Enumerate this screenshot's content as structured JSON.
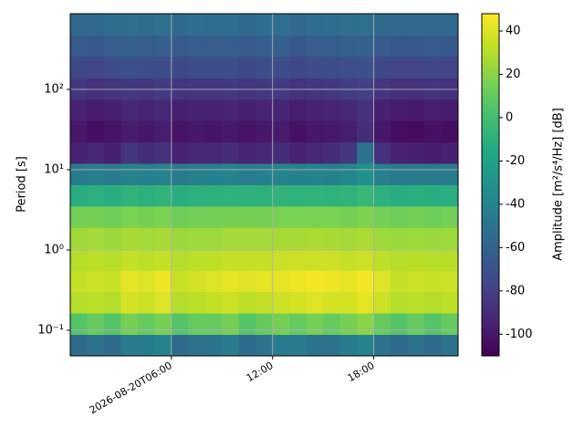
{
  "chart_data": {
    "type": "heatmap",
    "ylabel": "Period [s]",
    "x": [
      "2026-08-20T00:00",
      "2026-08-20T01:00",
      "2026-08-20T02:00",
      "2026-08-20T03:00",
      "2026-08-20T04:00",
      "2026-08-20T05:00",
      "2026-08-20T06:00",
      "2026-08-20T07:00",
      "2026-08-20T08:00",
      "2026-08-20T09:00",
      "2026-08-20T10:00",
      "2026-08-20T11:00",
      "2026-08-20T12:00",
      "2026-08-20T13:00",
      "2026-08-20T14:00",
      "2026-08-20T15:00",
      "2026-08-20T16:00",
      "2026-08-20T17:00",
      "2026-08-20T18:00",
      "2026-08-20T19:00",
      "2026-08-20T20:00",
      "2026-08-20T21:00",
      "2026-08-20T22:00"
    ],
    "xlim": [
      "2026-08-20T00:00",
      "2026-08-20T23:00"
    ],
    "xticks": [
      {
        "value": "2026-08-20T06:00",
        "label": "2026-08-20T06:00"
      },
      {
        "value": "2026-08-20T12:00",
        "label": "12:00"
      },
      {
        "value": "2026-08-20T18:00",
        "label": "18:00"
      }
    ],
    "y_bins": [
      0.048,
      0.0888,
      0.164,
      0.303,
      0.559,
      1.03,
      1.91,
      3.52,
      6.49,
      12.0,
      22.1,
      40.8,
      75.5,
      139,
      257,
      475,
      877
    ],
    "ylim": [
      0.048,
      877
    ],
    "yscale": "log",
    "yticks": [
      {
        "value": 0.1,
        "label": "10⁻¹"
      },
      {
        "value": 1,
        "label": "10⁰"
      },
      {
        "value": 10,
        "label": "10¹"
      },
      {
        "value": 100,
        "label": "10²"
      }
    ],
    "grid": true,
    "colormap": "viridis",
    "z": [
      [
        -55,
        -50,
        -55,
        -45,
        -45,
        -40,
        -55,
        -50,
        -50,
        -45,
        -55,
        -50,
        -45,
        -45,
        -50,
        -50,
        -45,
        -40,
        -50,
        -55,
        -50,
        -55,
        -50
      ],
      [
        5,
        10,
        5,
        15,
        10,
        15,
        5,
        10,
        10,
        15,
        5,
        10,
        15,
        10,
        15,
        10,
        15,
        20,
        10,
        5,
        10,
        5,
        10
      ],
      [
        30,
        32,
        30,
        38,
        36,
        40,
        30,
        32,
        34,
        36,
        32,
        34,
        36,
        38,
        40,
        38,
        38,
        42,
        36,
        30,
        32,
        30,
        32
      ],
      [
        34,
        36,
        35,
        42,
        40,
        44,
        35,
        38,
        40,
        42,
        40,
        42,
        42,
        44,
        46,
        44,
        42,
        46,
        40,
        34,
        36,
        35,
        36
      ],
      [
        30,
        32,
        30,
        34,
        32,
        34,
        30,
        32,
        32,
        34,
        34,
        34,
        35,
        36,
        36,
        36,
        34,
        36,
        32,
        30,
        31,
        30,
        31
      ],
      [
        25,
        26,
        24,
        27,
        26,
        27,
        24,
        25,
        25,
        26,
        26,
        26,
        27,
        27,
        28,
        27,
        26,
        28,
        25,
        24,
        25,
        24,
        25
      ],
      [
        14,
        15,
        13,
        16,
        15,
        16,
        13,
        14,
        14,
        15,
        15,
        15,
        16,
        16,
        16,
        16,
        15,
        17,
        14,
        13,
        14,
        13,
        14
      ],
      [
        -12,
        -10,
        -12,
        -8,
        -10,
        -8,
        -12,
        -10,
        -10,
        -9,
        -10,
        -10,
        -8,
        -9,
        -8,
        -9,
        -8,
        -5,
        -10,
        -12,
        -11,
        -12,
        -11
      ],
      [
        -45,
        -42,
        -44,
        -40,
        -42,
        -40,
        -45,
        -42,
        -42,
        -40,
        -43,
        -42,
        -40,
        -41,
        -40,
        -41,
        -38,
        -30,
        -42,
        -45,
        -44,
        -45,
        -44
      ],
      [
        -95,
        -92,
        -96,
        -85,
        -90,
        -88,
        -95,
        -92,
        -92,
        -90,
        -94,
        -92,
        -90,
        -95,
        -92,
        -90,
        -85,
        -50,
        -88,
        -95,
        -96,
        -98,
        -96
      ],
      [
        -100,
        -104,
        -102,
        -98,
        -100,
        -97,
        -102,
        -100,
        -101,
        -99,
        -102,
        -100,
        -98,
        -103,
        -100,
        -99,
        -97,
        -90,
        -100,
        -104,
        -105,
        -103,
        -104
      ],
      [
        -95,
        -98,
        -96,
        -92,
        -94,
        -92,
        -96,
        -95,
        -95,
        -94,
        -96,
        -94,
        -93,
        -97,
        -95,
        -94,
        -92,
        -88,
        -96,
        -98,
        -99,
        -97,
        -98
      ],
      [
        -85,
        -88,
        -86,
        -84,
        -85,
        -83,
        -86,
        -85,
        -85,
        -84,
        -86,
        -84,
        -83,
        -87,
        -85,
        -84,
        -82,
        -80,
        -86,
        -88,
        -88,
        -87,
        -88
      ],
      [
        -75,
        -77,
        -74,
        -72,
        -74,
        -73,
        -75,
        -74,
        -74,
        -73,
        -75,
        -74,
        -73,
        -76,
        -74,
        -73,
        -72,
        -71,
        -75,
        -77,
        -77,
        -76,
        -77
      ],
      [
        -65,
        -66,
        -63,
        -62,
        -64,
        -62,
        -65,
        -63,
        -64,
        -63,
        -65,
        -63,
        -62,
        -66,
        -64,
        -63,
        -62,
        -61,
        -65,
        -66,
        -66,
        -65,
        -66
      ],
      [
        -55,
        -56,
        -53,
        -52,
        -54,
        -52,
        -55,
        -53,
        -54,
        -53,
        -55,
        -53,
        -52,
        -56,
        -54,
        -53,
        -52,
        -51,
        -55,
        -56,
        -56,
        -55,
        -56
      ]
    ],
    "colorbar": {
      "label": "Amplitude [m²/s⁴/Hz] [dB]",
      "lim": [
        -110,
        48
      ],
      "ticks": [
        -100,
        -80,
        -60,
        -40,
        -20,
        0,
        20,
        40
      ]
    }
  }
}
